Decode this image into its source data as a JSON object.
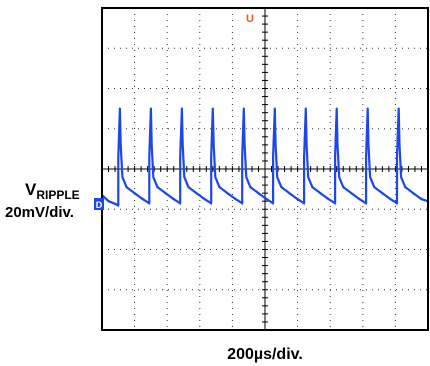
{
  "chart_data": {
    "type": "line",
    "title": "",
    "xlabel": "200µs/div.",
    "ylabel": "VRIPPLE 20mV/div.",
    "ylabel_main": "V",
    "ylabel_sub": "RIPPLE",
    "ylabel_scale": "20mV/div.",
    "channel_marker": "D",
    "trigger_marker": "U",
    "grid": true,
    "x_divisions": 10,
    "y_divisions": 8,
    "x_unit": "µs",
    "y_unit": "mV",
    "xlim": [
      0,
      2000
    ],
    "ylim": [
      -80,
      80
    ],
    "series": [
      {
        "color": "#1e48e6",
        "x": [
          0,
          40,
          100,
          100,
          110,
          115,
          125,
          150,
          200,
          250,
          290,
          290,
          300,
          305,
          315,
          340,
          390,
          440,
          480,
          480,
          490,
          495,
          505,
          530,
          580,
          630,
          670,
          670,
          680,
          685,
          695,
          720,
          770,
          820,
          860,
          860,
          870,
          875,
          885,
          910,
          960,
          1010,
          1050,
          1050,
          1060,
          1065,
          1075,
          1100,
          1150,
          1200,
          1240,
          1240,
          1250,
          1255,
          1265,
          1290,
          1340,
          1390,
          1430,
          1430,
          1440,
          1445,
          1455,
          1480,
          1530,
          1580,
          1620,
          1620,
          1630,
          1635,
          1645,
          1670,
          1720,
          1770,
          1810,
          1810,
          1820,
          1825,
          1835,
          1860,
          1910,
          1960,
          2000
        ],
        "values": [
          -13,
          -16,
          -18,
          6,
          30,
          12,
          -4,
          -9,
          -12,
          -15,
          -17,
          6,
          30,
          12,
          -4,
          -9,
          -12,
          -15,
          -17,
          6,
          30,
          12,
          -4,
          -9,
          -12,
          -15,
          -17,
          6,
          30,
          12,
          -4,
          -9,
          -12,
          -15,
          -17,
          6,
          30,
          12,
          -4,
          -9,
          -12,
          -15,
          -17,
          6,
          30,
          12,
          -4,
          -9,
          -12,
          -15,
          -17,
          6,
          30,
          12,
          -4,
          -9,
          -12,
          -15,
          -17,
          6,
          30,
          12,
          -4,
          -9,
          -12,
          -15,
          -17,
          6,
          30,
          12,
          -4,
          -9,
          -12,
          -15,
          -17,
          6,
          30,
          12,
          -4,
          -9,
          -12,
          -15,
          -16
        ]
      }
    ]
  }
}
